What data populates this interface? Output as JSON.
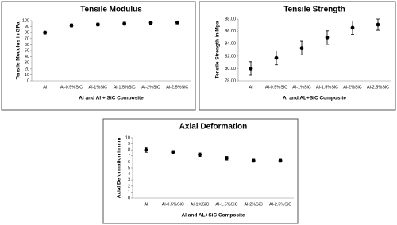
{
  "chart_data": [
    {
      "type": "errorbar",
      "title": "Tensile Modulus",
      "x_label": "Al and Al + SiC Composite",
      "y_label": "Tensile Modulus in GPa",
      "categories": [
        "Al",
        "Al-0.5%SiC",
        "Al-1%SiC",
        "Al-1.5%SiC",
        "Al-2%SiC",
        "Al-2.5%SiC"
      ],
      "values": [
        80,
        92,
        93.5,
        95,
        96.5,
        97
      ],
      "errors": [
        2.5,
        2.5,
        2.3,
        2.5,
        2.5,
        2.5
      ],
      "color": "#000000",
      "ylim": [
        0,
        100
      ],
      "yticks": [
        0,
        10,
        20,
        30,
        40,
        50,
        60,
        70,
        80,
        90,
        100
      ]
    },
    {
      "type": "errorbar",
      "title": "Tensile Strength",
      "x_label": "Al and AL+SiC Composite",
      "y_label": "Tensile Strength in Mpa",
      "categories": [
        "Al",
        "Al-0.5%SiC",
        "Al-1%SiC",
        "Al-1.5%SiC",
        "Al-2%SiC",
        "Al-2.5%SiC"
      ],
      "values": [
        80.0,
        81.7,
        83.3,
        85.0,
        86.6,
        87.1
      ],
      "errors": [
        1.1,
        1.1,
        1.1,
        1.1,
        1.1,
        0.9
      ],
      "color": "#000000",
      "ylim": [
        78,
        88
      ],
      "yticks": [
        {
          "value": 78,
          "label": "78.00"
        },
        {
          "value": 80,
          "label": "80.00"
        },
        {
          "value": 82,
          "label": "82.00"
        },
        {
          "value": 84,
          "label": "84.00"
        },
        {
          "value": 86,
          "label": "86.00"
        },
        {
          "value": 88,
          "label": "88.00"
        }
      ]
    },
    {
      "type": "errorbar",
      "title": "Axial Deformation",
      "x_label": "Al and AL+SiC Composite",
      "y_label": "Axial Deformation in mm",
      "categories": [
        "Al",
        "Al-0.5%SiC",
        "Al-1%SiC",
        "Al-1.5%SiC",
        "Al-2%SiC",
        "Al-2.5%SiC"
      ],
      "values": [
        8.0,
        7.6,
        7.2,
        6.6,
        6.2,
        6.2
      ],
      "errors": [
        0.4,
        0.3,
        0.3,
        0.3,
        0.25,
        0.25
      ],
      "color": "#000000",
      "ylim": [
        0,
        10
      ],
      "yticks": [
        0,
        1,
        2,
        3,
        4,
        5,
        6,
        7,
        8,
        9,
        10
      ]
    }
  ]
}
